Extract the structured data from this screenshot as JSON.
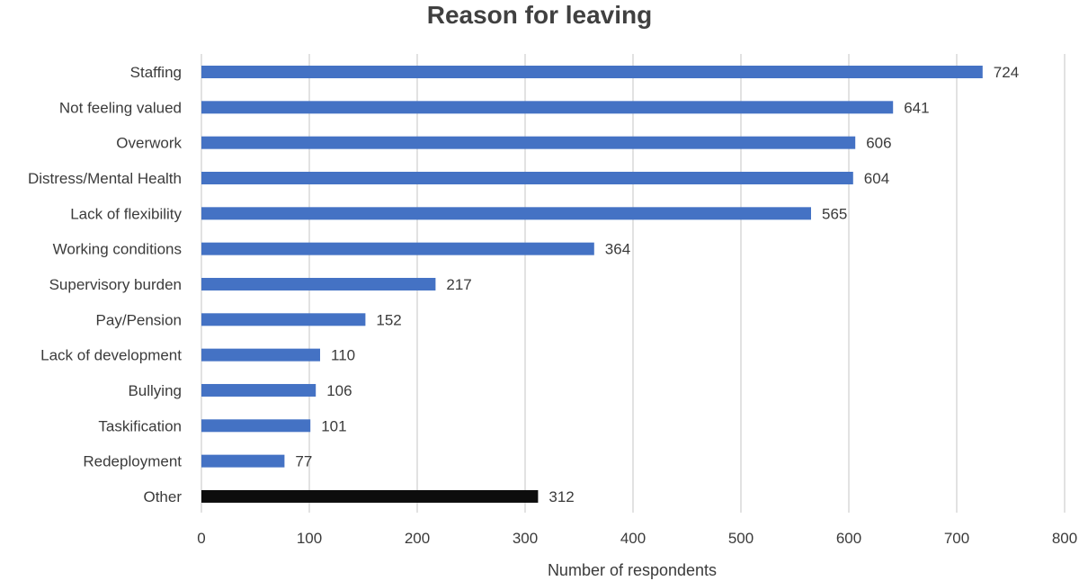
{
  "chart_data": {
    "type": "bar",
    "orientation": "horizontal",
    "title": "Reason for leaving",
    "xlabel": "Number of respondents",
    "ylabel": "",
    "xlim": [
      0,
      800
    ],
    "x_ticks": [
      "0",
      "100",
      "200",
      "300",
      "400",
      "500",
      "600",
      "700",
      "800"
    ],
    "grid": "vertical",
    "categories": [
      "Staffing",
      "Not feeling valued",
      "Overwork",
      "Distress/Mental Health",
      "Lack of flexibility",
      "Working conditions",
      "Supervisory burden",
      "Pay/Pension",
      "Lack of development",
      "Bullying",
      "Taskification",
      "Redeployment",
      "Other"
    ],
    "values": [
      724,
      641,
      606,
      604,
      565,
      364,
      217,
      152,
      110,
      106,
      101,
      77,
      312
    ],
    "bar_colors": [
      "#4472c4",
      "#4472c4",
      "#4472c4",
      "#4472c4",
      "#4472c4",
      "#4472c4",
      "#4472c4",
      "#4472c4",
      "#4472c4",
      "#4472c4",
      "#4472c4",
      "#4472c4",
      "#0d0d0d"
    ]
  }
}
